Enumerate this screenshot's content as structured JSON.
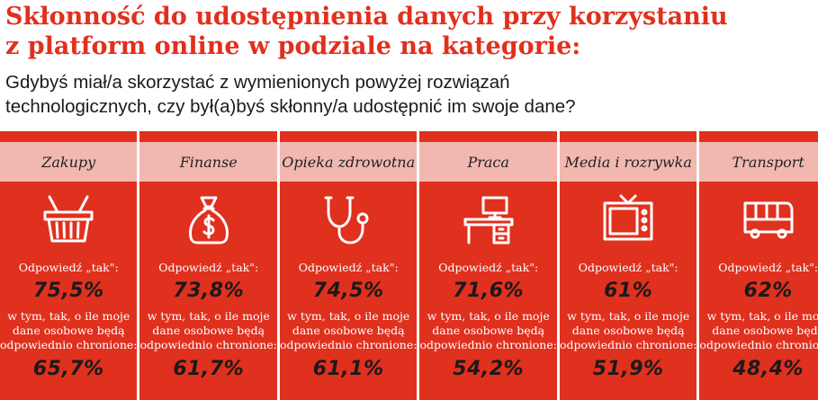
{
  "title": {
    "line1": "Skłonność do udostępnienia danych przy korzystaniu",
    "line2": "z platform online w podziale na kategorie:"
  },
  "question": {
    "line1": "Gdybyś miał/a skorzystać z wymienionych powyżej rozwiązań",
    "line2": "technologicznych, czy był(a)byś skłonny/a udostępnić im swoje dane?"
  },
  "colors": {
    "accent": "#e0301e",
    "band": "#f2b8b0"
  },
  "categories": [
    {
      "name": "Zakupy",
      "icon": "basket-icon",
      "label": "Odpowiedź „tak\":",
      "value": "75,5%",
      "note": [
        "w tym, tak, o ile moje",
        "dane osobowe będą",
        "odpowiednio chronione:"
      ],
      "value2": "65,7%"
    },
    {
      "name": "Finanse",
      "icon": "money-bag-icon",
      "label": "Odpowiedź „tak\":",
      "value": "73,8%",
      "note": [
        "w tym, tak, o ile moje",
        "dane osobowe będą",
        "odpowiednio chronione:"
      ],
      "value2": "61,7%"
    },
    {
      "name": "Opieka zdrowotna",
      "icon": "stethoscope-icon",
      "label": "Odpowiedź „tak\":",
      "value": "74,5%",
      "note": [
        "w tym, tak, o ile moje",
        "dane osobowe będą",
        "odpowiednio chronione:"
      ],
      "value2": "61,1%"
    },
    {
      "name": "Praca",
      "icon": "desk-icon",
      "label": "Odpowiedź „tak\":",
      "value": "71,6%",
      "note": [
        "w tym, tak, o ile moje",
        "dane osobowe będą",
        "odpowiednio chronione:"
      ],
      "value2": "54,2%"
    },
    {
      "name": "Media i rozrywka",
      "icon": "tv-icon",
      "label": "Odpowiedź „tak\":",
      "value": "61%",
      "note": [
        "w tym, tak, o ile moje",
        "dane osobowe będą",
        "odpowiednio chronione:"
      ],
      "value2": "51,9%"
    },
    {
      "name": "Transport",
      "icon": "bus-icon",
      "label": "Odpowiedź „tak\":",
      "value": "62%",
      "note": [
        "w tym, tak, o ile moje",
        "dane osobowe będą",
        "odpowiednio chronione:"
      ],
      "value2": "48,4%"
    }
  ]
}
